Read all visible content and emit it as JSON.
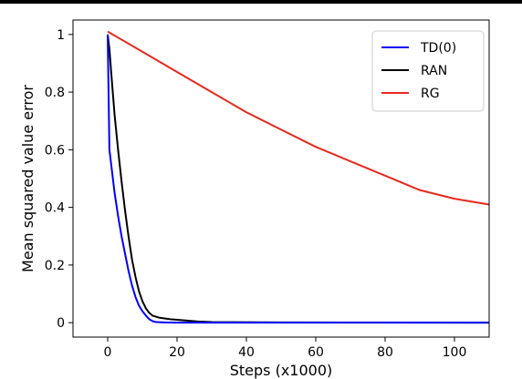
{
  "chart_data": {
    "type": "line",
    "xlabel": "Steps (x1000)",
    "ylabel": "Mean squared value error",
    "xlim": [
      -10,
      110
    ],
    "ylim": [
      -0.05,
      1.05
    ],
    "xticks": [
      "0",
      "20",
      "40",
      "60",
      "80",
      "100"
    ],
    "yticks": [
      "0",
      "0.2",
      "0.4",
      "0.6",
      "0.8",
      "1"
    ],
    "legend": "top-right",
    "grid": false,
    "series": [
      {
        "name": "TD(0)",
        "color": "#0000ff",
        "x": [
          0,
          0.5,
          1,
          2,
          3,
          4,
          5,
          6,
          7,
          8,
          9,
          10,
          11,
          12,
          13,
          14,
          16,
          20,
          30,
          50,
          80,
          110
        ],
        "y": [
          1.0,
          0.6,
          0.55,
          0.45,
          0.37,
          0.3,
          0.24,
          0.18,
          0.13,
          0.09,
          0.06,
          0.04,
          0.025,
          0.012,
          0.005,
          0.002,
          0.001,
          0.0,
          0.0,
          0.0,
          0.0,
          0.0
        ]
      },
      {
        "name": "RAN",
        "color": "#000000",
        "x": [
          0,
          0.5,
          1,
          2,
          3,
          4,
          5,
          6,
          7,
          8,
          9,
          10,
          11,
          12,
          13,
          15,
          18,
          22,
          26,
          30,
          50,
          80,
          110
        ],
        "y": [
          1.0,
          0.95,
          0.87,
          0.72,
          0.6,
          0.49,
          0.39,
          0.3,
          0.22,
          0.16,
          0.11,
          0.075,
          0.05,
          0.034,
          0.024,
          0.017,
          0.012,
          0.008,
          0.004,
          0.002,
          0.001,
          0.0005,
          0.0
        ]
      },
      {
        "name": "RG",
        "color": "#e8291c",
        "x": [
          0,
          10,
          20,
          30,
          40,
          50,
          60,
          70,
          80,
          90,
          100,
          110
        ],
        "y": [
          1.01,
          0.94,
          0.87,
          0.8,
          0.73,
          0.67,
          0.61,
          0.56,
          0.51,
          0.46,
          0.43,
          0.41
        ]
      }
    ]
  }
}
